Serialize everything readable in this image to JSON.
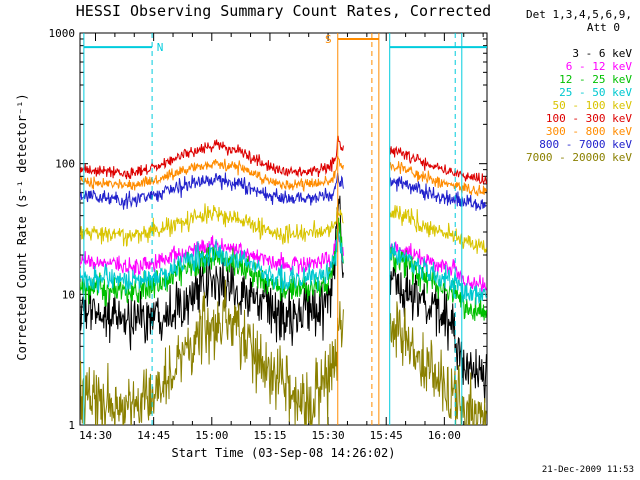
{
  "footer": {
    "timestamp": "21-Dec-2009 11:53"
  },
  "chart_data": {
    "type": "line",
    "title": "HESSI Observing Summary Count Rates, Corrected",
    "xlabel": "Start Time (03-Sep-08 14:26:02)",
    "ylabel": "Corrected Count Rate (s⁻¹ detector⁻¹)",
    "legend_title_line1": "Det 1,3,4,5,6,9,",
    "legend_title_line2": "Att 0",
    "y_scale": "log",
    "ylim": [
      1,
      1000
    ],
    "xlim_minutes": [
      0,
      105
    ],
    "x_major_ticks": [
      {
        "t": 4,
        "label": "14:30"
      },
      {
        "t": 19,
        "label": "14:45"
      },
      {
        "t": 34,
        "label": "15:00"
      },
      {
        "t": 49,
        "label": "15:15"
      },
      {
        "t": 64,
        "label": "15:30"
      },
      {
        "t": 79,
        "label": "15:45"
      },
      {
        "t": 94,
        "label": "16:00"
      }
    ],
    "x_minor_step": 5,
    "y_major_ticks": [
      {
        "v": 1,
        "label": "1"
      },
      {
        "v": 10,
        "label": "10"
      },
      {
        "v": 100,
        "label": "100"
      },
      {
        "v": 1000,
        "label": "1000"
      }
    ],
    "data_gap_minutes": [
      68,
      79.9
    ],
    "series": [
      {
        "name": "3 - 6 keV",
        "color": "#000000",
        "noise": 0.1,
        "points": [
          [
            0,
            7.5
          ],
          [
            6,
            7
          ],
          [
            12,
            6.3
          ],
          [
            18,
            6.8
          ],
          [
            24,
            8
          ],
          [
            30,
            10.5
          ],
          [
            35,
            12
          ],
          [
            40,
            11
          ],
          [
            46,
            8.5
          ],
          [
            53,
            6.8
          ],
          [
            58,
            7
          ],
          [
            62,
            8
          ],
          [
            64.5,
            9
          ],
          [
            65.8,
            18
          ],
          [
            66.5,
            60
          ],
          [
            67.1,
            35
          ],
          [
            68,
            14
          ],
          [
            79.9,
            12
          ],
          [
            82,
            11.5
          ],
          [
            86,
            9.5
          ],
          [
            90,
            8
          ],
          [
            94,
            6.8
          ],
          [
            96.5,
            5.5
          ],
          [
            98.5,
            3.2
          ],
          [
            100,
            2.6
          ],
          [
            105,
            2.2
          ]
        ]
      },
      {
        "name": "6 - 12 keV",
        "color": "#ff00ff",
        "noise": 0.035,
        "points": [
          [
            0,
            18
          ],
          [
            8,
            17
          ],
          [
            12,
            16
          ],
          [
            20,
            18
          ],
          [
            28,
            21.5
          ],
          [
            35,
            24
          ],
          [
            42,
            21
          ],
          [
            48,
            18
          ],
          [
            53,
            16.5
          ],
          [
            60,
            17
          ],
          [
            64.5,
            18
          ],
          [
            65.8,
            22
          ],
          [
            66.5,
            30
          ],
          [
            67.2,
            26
          ],
          [
            68,
            20
          ],
          [
            79.9,
            23
          ],
          [
            84,
            21
          ],
          [
            88,
            19
          ],
          [
            94,
            16.5
          ],
          [
            97,
            15.5
          ],
          [
            99,
            13
          ],
          [
            105,
            11
          ]
        ]
      },
      {
        "name": "12 - 25 keV",
        "color": "#00c000",
        "noise": 0.05,
        "points": [
          [
            0,
            11.5
          ],
          [
            8,
            11
          ],
          [
            12,
            10.3
          ],
          [
            20,
            12
          ],
          [
            28,
            16
          ],
          [
            35,
            19.5
          ],
          [
            42,
            16
          ],
          [
            48,
            12.5
          ],
          [
            53,
            10.8
          ],
          [
            60,
            11.5
          ],
          [
            64.5,
            12.5
          ],
          [
            65.8,
            18
          ],
          [
            66.5,
            36
          ],
          [
            67.2,
            28
          ],
          [
            68,
            16
          ],
          [
            79.9,
            19
          ],
          [
            84,
            17
          ],
          [
            88,
            14.5
          ],
          [
            94,
            11
          ],
          [
            97,
            10
          ],
          [
            99,
            8
          ],
          [
            105,
            7
          ]
        ]
      },
      {
        "name": "25 - 50 keV",
        "color": "#00c8d0",
        "noise": 0.045,
        "points": [
          [
            0,
            13.5
          ],
          [
            8,
            13
          ],
          [
            12,
            12.3
          ],
          [
            20,
            14
          ],
          [
            28,
            18
          ],
          [
            35,
            21.5
          ],
          [
            42,
            18
          ],
          [
            48,
            14.5
          ],
          [
            53,
            12.8
          ],
          [
            60,
            13.5
          ],
          [
            64.5,
            14.5
          ],
          [
            65.8,
            19
          ],
          [
            66.5,
            29
          ],
          [
            67.2,
            24
          ],
          [
            68,
            17
          ],
          [
            79.9,
            21
          ],
          [
            84,
            19
          ],
          [
            88,
            16
          ],
          [
            94,
            13
          ],
          [
            97,
            12.3
          ],
          [
            99,
            10.5
          ],
          [
            105,
            9.5
          ]
        ]
      },
      {
        "name": "50 - 100 keV",
        "color": "#d9c400",
        "noise": 0.035,
        "points": [
          [
            0,
            30
          ],
          [
            8,
            29
          ],
          [
            12,
            27.5
          ],
          [
            20,
            31
          ],
          [
            28,
            37
          ],
          [
            35,
            41
          ],
          [
            42,
            37
          ],
          [
            48,
            31
          ],
          [
            53,
            28
          ],
          [
            60,
            30
          ],
          [
            64.5,
            31
          ],
          [
            66,
            38
          ],
          [
            66.5,
            46
          ],
          [
            67.2,
            42
          ],
          [
            68,
            36
          ],
          [
            79.9,
            43
          ],
          [
            84,
            39
          ],
          [
            88,
            34
          ],
          [
            94,
            29
          ],
          [
            97,
            28
          ],
          [
            99,
            25
          ],
          [
            105,
            23
          ]
        ]
      },
      {
        "name": "100 - 300 keV",
        "color": "#dd0000",
        "noise": 0.022,
        "points": [
          [
            0,
            90
          ],
          [
            8,
            87
          ],
          [
            12,
            83
          ],
          [
            20,
            95
          ],
          [
            28,
            122
          ],
          [
            35,
            138
          ],
          [
            42,
            122
          ],
          [
            48,
            97
          ],
          [
            53,
            85
          ],
          [
            60,
            88
          ],
          [
            64.5,
            93
          ],
          [
            66,
            115
          ],
          [
            66.5,
            152
          ],
          [
            67.2,
            140
          ],
          [
            68,
            122
          ],
          [
            79.9,
            130
          ],
          [
            84,
            118
          ],
          [
            88,
            103
          ],
          [
            94,
            88
          ],
          [
            97,
            86
          ],
          [
            99,
            80
          ],
          [
            105,
            76
          ]
        ]
      },
      {
        "name": "300 - 800 keV",
        "color": "#ff8c00",
        "noise": 0.022,
        "points": [
          [
            0,
            72
          ],
          [
            8,
            70
          ],
          [
            12,
            67
          ],
          [
            20,
            75
          ],
          [
            28,
            92
          ],
          [
            35,
            101
          ],
          [
            42,
            92
          ],
          [
            48,
            76
          ],
          [
            53,
            68
          ],
          [
            60,
            70
          ],
          [
            64.5,
            73
          ],
          [
            66,
            85
          ],
          [
            66.5,
            108
          ],
          [
            67.2,
            100
          ],
          [
            68,
            90
          ],
          [
            79.9,
            98
          ],
          [
            84,
            90
          ],
          [
            88,
            80
          ],
          [
            94,
            70
          ],
          [
            97,
            68
          ],
          [
            99,
            64
          ],
          [
            105,
            61
          ]
        ]
      },
      {
        "name": "800 - 7000 keV",
        "color": "#2222cc",
        "noise": 0.03,
        "points": [
          [
            0,
            56
          ],
          [
            8,
            55
          ],
          [
            12,
            52
          ],
          [
            20,
            58
          ],
          [
            28,
            70
          ],
          [
            35,
            77
          ],
          [
            42,
            70
          ],
          [
            48,
            59
          ],
          [
            53,
            53
          ],
          [
            60,
            55
          ],
          [
            64.5,
            57
          ],
          [
            66,
            65
          ],
          [
            66.5,
            80
          ],
          [
            67.2,
            75
          ],
          [
            68,
            68
          ],
          [
            79.9,
            76
          ],
          [
            84,
            70
          ],
          [
            88,
            62
          ],
          [
            94,
            55
          ],
          [
            97,
            54
          ],
          [
            99,
            50
          ],
          [
            105,
            48
          ]
        ]
      },
      {
        "name": "7000 - 20000 keV",
        "color": "#8a8000",
        "noise": 0.13,
        "points": [
          [
            0,
            1.7
          ],
          [
            6,
            1.5
          ],
          [
            12,
            1.35
          ],
          [
            18,
            1.6
          ],
          [
            24,
            2.6
          ],
          [
            30,
            4.8
          ],
          [
            35,
            6.3
          ],
          [
            40,
            5.8
          ],
          [
            46,
            3.4
          ],
          [
            53,
            1.9
          ],
          [
            58,
            1.5
          ],
          [
            62,
            1.8
          ],
          [
            64.5,
            2.2
          ],
          [
            66,
            3.5
          ],
          [
            66.5,
            5
          ],
          [
            68,
            4
          ],
          [
            79.9,
            6
          ],
          [
            84,
            4.8
          ],
          [
            88,
            3.2
          ],
          [
            94,
            1.8
          ],
          [
            97,
            1.5
          ],
          [
            99,
            1.2
          ],
          [
            105,
            1.05
          ]
        ]
      }
    ],
    "annotations": {
      "night": {
        "label": "N",
        "color": "#00ccdd",
        "bar_value": 780,
        "label_t": 19.8,
        "bars": [
          [
            1,
            18.6
          ],
          [
            79.9,
            105
          ]
        ],
        "solid_lines": [
          1,
          79.9,
          98.5
        ],
        "dashed_lines": [
          18.6,
          96.8
        ]
      },
      "saa": {
        "label": "S",
        "color": "#ff8c00",
        "bar_value": 900,
        "label_t": 63.2,
        "bars": [
          [
            66.5,
            77.1
          ]
        ],
        "solid_lines": [
          66.5,
          77.1
        ],
        "dashed_lines": [
          75.3
        ]
      }
    }
  }
}
